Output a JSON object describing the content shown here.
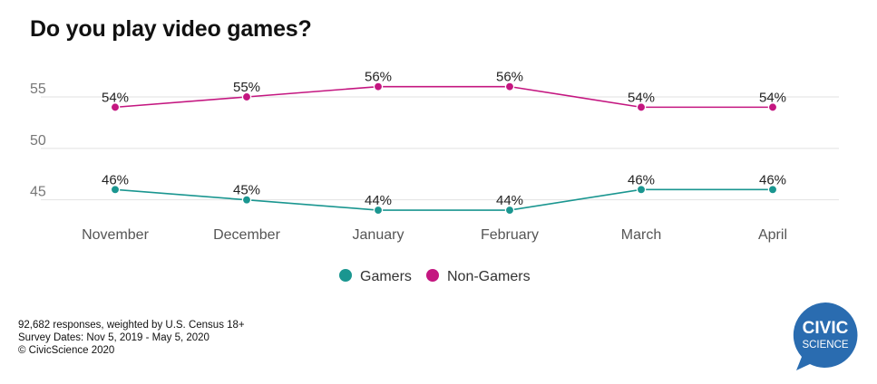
{
  "title": "Do you play video games?",
  "footnotes": [
    "92,682 responses, weighted by U.S. Census 18+",
    "Survey Dates: Nov 5, 2019 - May 5, 2020",
    "© CivicScience 2020"
  ],
  "logo": {
    "line1": "CIVIC",
    "line2": "SCIENCE",
    "color": "#2a6cb0"
  },
  "chart_data": {
    "type": "line",
    "title": "Do you play video games?",
    "categories": [
      "November",
      "December",
      "January",
      "February",
      "March",
      "April"
    ],
    "y_ticks": [
      45,
      50,
      55
    ],
    "ylim": [
      43.3,
      57.2
    ],
    "grid": true,
    "legend_position": "bottom-center",
    "series": [
      {
        "name": "Gamers",
        "color": "#1a9690",
        "values": [
          46,
          45,
          44,
          44,
          46,
          46
        ],
        "labels": [
          "46%",
          "45%",
          "44%",
          "44%",
          "46%",
          "46%"
        ]
      },
      {
        "name": "Non-Gamers",
        "color": "#c41680",
        "values": [
          54,
          55,
          56,
          56,
          54,
          54
        ],
        "labels": [
          "54%",
          "55%",
          "56%",
          "56%",
          "54%",
          "54%"
        ]
      }
    ]
  }
}
